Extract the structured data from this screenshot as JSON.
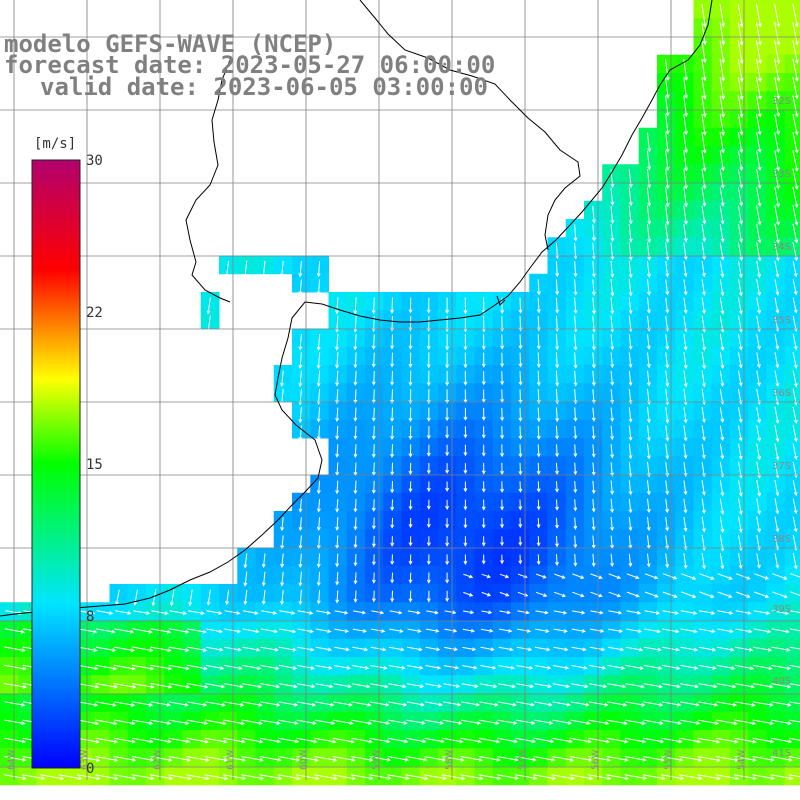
{
  "header": {
    "model": "modelo GEFS-WAVE (NCEP)",
    "forecast": "forecast date: 2023-05-27 06:00:00",
    "valid": "valid date: 2023-06-05 03:00:00"
  },
  "colorbar": {
    "unit": "[m/s]",
    "ticks": [
      "30",
      "22",
      "15",
      "8",
      "0"
    ],
    "stops": [
      "#0000ff",
      "#00e5ff",
      "#00ff00",
      "#ffff00",
      "#ff0000",
      "#b2006e"
    ]
  },
  "lat_labels": [
    "32S",
    "33S",
    "34S",
    "35S",
    "36S",
    "37S",
    "38S",
    "39S",
    "40S",
    "41S"
  ],
  "lon_labels": [
    "64W",
    "63W",
    "62W",
    "61W",
    "60W",
    "59W",
    "58W",
    "57W",
    "56W",
    "55W",
    "54W"
  ],
  "colors": {
    "land": "#ffffff",
    "grid": "#808080",
    "coast": "#000000",
    "arrow": "#ffffff"
  }
}
